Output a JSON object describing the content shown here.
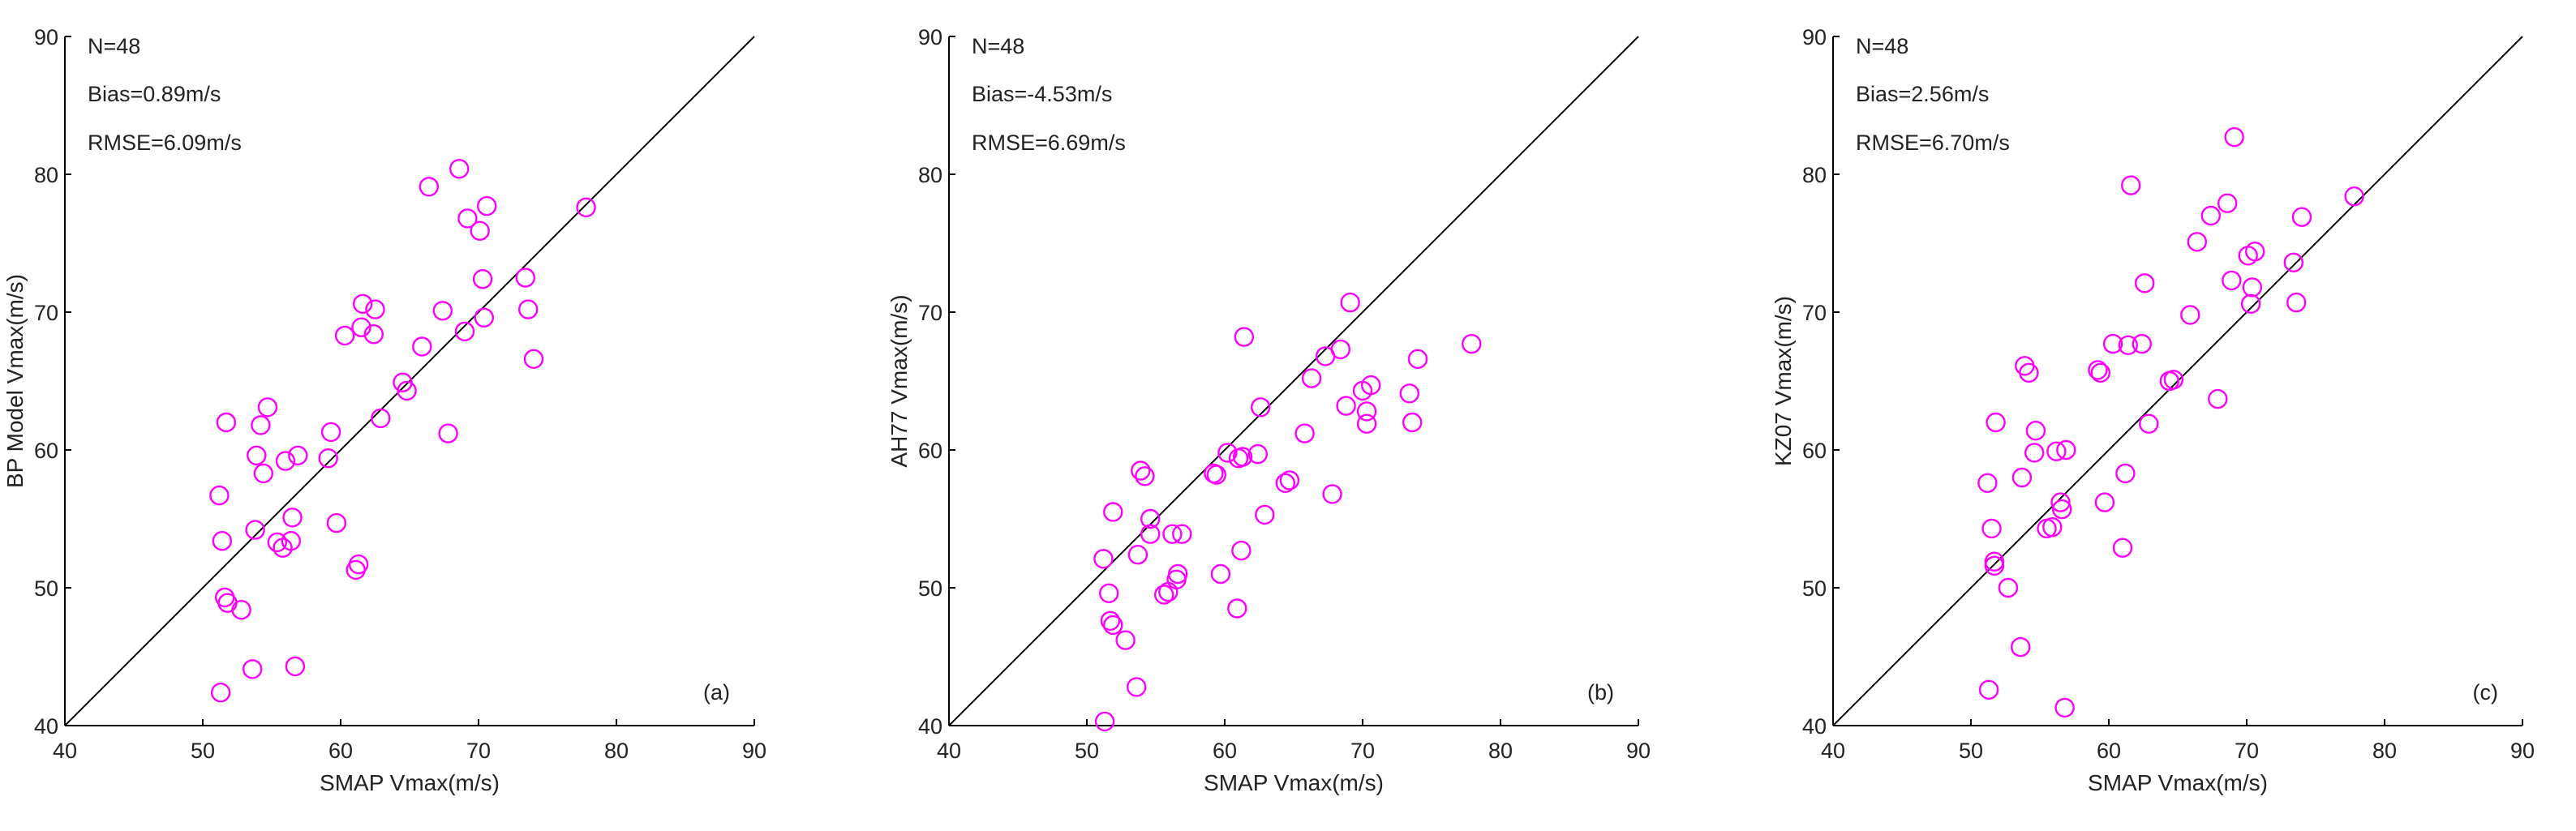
{
  "colors": {
    "marker": "#ff00ff",
    "axis": "#000000"
  },
  "chart_data": [
    {
      "type": "scatter",
      "panel_label": "(a)",
      "xlabel": "SMAP Vmax(m/s)",
      "ylabel": "BP Model Vmax(m/s)",
      "xlim": [
        40,
        90
      ],
      "ylim": [
        40,
        90
      ],
      "xticks": [
        40,
        50,
        60,
        70,
        80,
        90
      ],
      "yticks": [
        40,
        50,
        60,
        70,
        80,
        90
      ],
      "reference_line": "1:1",
      "annotations": {
        "n": "N=48",
        "bias": "Bias=0.89m/s",
        "rmse": "RMSE=6.09m/s"
      },
      "marker": "open circle",
      "points": [
        [
          51.2,
          56.7
        ],
        [
          51.4,
          53.4
        ],
        [
          51.6,
          49.3
        ],
        [
          51.8,
          48.9
        ],
        [
          51.7,
          62.0
        ],
        [
          51.3,
          42.4
        ],
        [
          52.8,
          48.4
        ],
        [
          53.6,
          44.1
        ],
        [
          53.8,
          54.2
        ],
        [
          53.9,
          59.6
        ],
        [
          54.2,
          61.8
        ],
        [
          54.4,
          58.3
        ],
        [
          54.7,
          63.1
        ],
        [
          55.4,
          53.3
        ],
        [
          55.8,
          52.9
        ],
        [
          56.0,
          59.2
        ],
        [
          56.4,
          53.4
        ],
        [
          56.5,
          55.1
        ],
        [
          56.7,
          44.3
        ],
        [
          56.9,
          59.6
        ],
        [
          59.1,
          59.4
        ],
        [
          59.3,
          61.3
        ],
        [
          59.7,
          54.7
        ],
        [
          60.3,
          68.3
        ],
        [
          61.1,
          51.3
        ],
        [
          61.3,
          51.7
        ],
        [
          61.5,
          68.9
        ],
        [
          61.6,
          70.6
        ],
        [
          62.4,
          68.4
        ],
        [
          62.5,
          70.2
        ],
        [
          62.9,
          62.3
        ],
        [
          64.5,
          64.9
        ],
        [
          64.8,
          64.3
        ],
        [
          65.9,
          67.5
        ],
        [
          66.4,
          79.1
        ],
        [
          67.4,
          70.1
        ],
        [
          67.8,
          61.2
        ],
        [
          68.6,
          80.4
        ],
        [
          69.0,
          68.6
        ],
        [
          69.2,
          76.8
        ],
        [
          70.1,
          75.9
        ],
        [
          70.3,
          72.4
        ],
        [
          70.4,
          69.6
        ],
        [
          70.6,
          77.7
        ],
        [
          73.4,
          72.5
        ],
        [
          73.6,
          70.2
        ],
        [
          74.0,
          66.6
        ],
        [
          77.8,
          77.6
        ]
      ]
    },
    {
      "type": "scatter",
      "panel_label": "(b)",
      "xlabel": "SMAP Vmax(m/s)",
      "ylabel": "AH77 Vmax(m/s)",
      "xlim": [
        40,
        90
      ],
      "ylim": [
        40,
        90
      ],
      "xticks": [
        40,
        50,
        60,
        70,
        80,
        90
      ],
      "yticks": [
        40,
        50,
        60,
        70,
        80,
        90
      ],
      "reference_line": "1:1",
      "annotations": {
        "n": "N=48",
        "bias": "Bias=-4.53m/s",
        "rmse": "RMSE=6.69m/s"
      },
      "marker": "open circle",
      "points": [
        [
          51.2,
          52.1
        ],
        [
          51.3,
          40.3
        ],
        [
          51.6,
          49.6
        ],
        [
          51.7,
          47.6
        ],
        [
          51.9,
          47.3
        ],
        [
          51.9,
          55.5
        ],
        [
          52.8,
          46.2
        ],
        [
          53.6,
          42.8
        ],
        [
          53.7,
          52.4
        ],
        [
          53.9,
          58.5
        ],
        [
          54.2,
          58.1
        ],
        [
          54.6,
          53.9
        ],
        [
          54.6,
          55.0
        ],
        [
          55.6,
          49.5
        ],
        [
          55.9,
          49.7
        ],
        [
          56.2,
          53.9
        ],
        [
          56.5,
          50.6
        ],
        [
          56.6,
          51.0
        ],
        [
          56.9,
          53.9
        ],
        [
          59.2,
          58.3
        ],
        [
          59.4,
          58.2
        ],
        [
          59.7,
          51.0
        ],
        [
          60.2,
          59.8
        ],
        [
          60.9,
          48.5
        ],
        [
          61.2,
          52.7
        ],
        [
          61.3,
          59.5
        ],
        [
          61.4,
          68.2
        ],
        [
          62.4,
          59.7
        ],
        [
          62.6,
          63.1
        ],
        [
          62.9,
          55.3
        ],
        [
          64.4,
          57.6
        ],
        [
          64.7,
          57.8
        ],
        [
          65.8,
          61.2
        ],
        [
          66.3,
          65.2
        ],
        [
          67.3,
          66.8
        ],
        [
          67.8,
          56.8
        ],
        [
          68.4,
          67.3
        ],
        [
          68.8,
          63.2
        ],
        [
          69.1,
          70.7
        ],
        [
          70.0,
          64.3
        ],
        [
          70.3,
          62.8
        ],
        [
          70.3,
          61.9
        ],
        [
          70.6,
          64.7
        ],
        [
          73.4,
          64.1
        ],
        [
          73.6,
          62.0
        ],
        [
          74.0,
          66.6
        ],
        [
          77.9,
          67.7
        ],
        [
          61.0,
          59.4
        ]
      ]
    },
    {
      "type": "scatter",
      "panel_label": "(c)",
      "xlabel": "SMAP Vmax(m/s)",
      "ylabel": "KZ07 Vmax(m/s)",
      "xlim": [
        40,
        90
      ],
      "ylim": [
        40,
        90
      ],
      "xticks": [
        40,
        50,
        60,
        70,
        80,
        90
      ],
      "yticks": [
        40,
        50,
        60,
        70,
        80,
        90
      ],
      "reference_line": "1:1",
      "annotations": {
        "n": "N=48",
        "bias": "Bias=2.56m/s",
        "rmse": "RMSE=6.70m/s"
      },
      "marker": "open circle",
      "points": [
        [
          51.2,
          57.6
        ],
        [
          51.3,
          42.6
        ],
        [
          51.5,
          54.3
        ],
        [
          51.7,
          51.6
        ],
        [
          51.8,
          62.0
        ],
        [
          51.7,
          51.9
        ],
        [
          52.7,
          50.0
        ],
        [
          53.6,
          45.7
        ],
        [
          53.7,
          58.0
        ],
        [
          53.9,
          66.1
        ],
        [
          54.2,
          65.6
        ],
        [
          54.6,
          59.8
        ],
        [
          54.7,
          61.4
        ],
        [
          55.5,
          54.3
        ],
        [
          55.9,
          54.4
        ],
        [
          56.2,
          59.9
        ],
        [
          56.5,
          56.2
        ],
        [
          56.6,
          55.7
        ],
        [
          56.8,
          41.3
        ],
        [
          56.9,
          60.0
        ],
        [
          59.2,
          65.8
        ],
        [
          59.4,
          65.6
        ],
        [
          59.7,
          56.2
        ],
        [
          60.3,
          67.7
        ],
        [
          61.0,
          52.9
        ],
        [
          61.2,
          58.3
        ],
        [
          61.4,
          67.6
        ],
        [
          61.6,
          79.2
        ],
        [
          62.4,
          67.7
        ],
        [
          62.6,
          72.1
        ],
        [
          62.9,
          61.9
        ],
        [
          64.4,
          65.0
        ],
        [
          64.7,
          65.1
        ],
        [
          65.9,
          69.8
        ],
        [
          66.4,
          75.1
        ],
        [
          67.4,
          77.0
        ],
        [
          67.9,
          63.7
        ],
        [
          68.6,
          77.9
        ],
        [
          68.9,
          72.3
        ],
        [
          69.1,
          82.7
        ],
        [
          70.1,
          74.1
        ],
        [
          70.3,
          70.6
        ],
        [
          70.4,
          71.8
        ],
        [
          70.6,
          74.4
        ],
        [
          73.4,
          73.6
        ],
        [
          73.6,
          70.7
        ],
        [
          74.0,
          76.9
        ],
        [
          77.8,
          78.4
        ]
      ]
    }
  ]
}
